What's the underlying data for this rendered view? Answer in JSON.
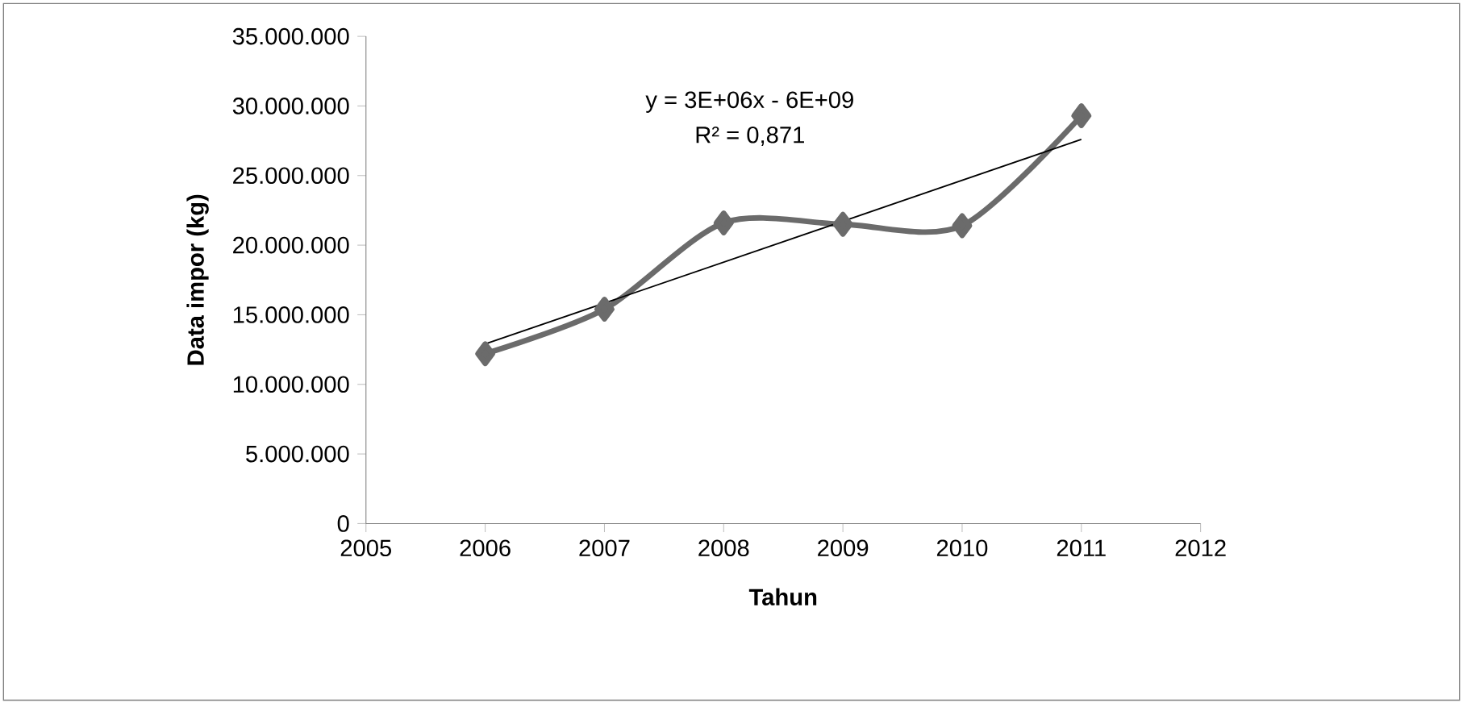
{
  "chart_data": {
    "type": "line",
    "xlabel": "Tahun",
    "ylabel": "Data impor (kg)",
    "x": [
      2006,
      2007,
      2008,
      2009,
      2010,
      2011
    ],
    "series": [
      {
        "color": "#6b6b6b",
        "values": [
          12200000,
          15400000,
          21600000,
          21500000,
          21400000,
          29300000
        ],
        "marker": "diamond"
      },
      {
        "type": "line",
        "color": "#000000",
        "x": [
          2006,
          2011
        ],
        "values": [
          12900000,
          27600000
        ],
        "marker": "none"
      }
    ],
    "xlim": [
      2005,
      2012
    ],
    "xticks": [
      2005,
      2006,
      2007,
      2008,
      2009,
      2010,
      2011,
      2012
    ],
    "ylim": [
      0,
      35000000
    ],
    "yticks": [
      0,
      {
        "value": 5000000,
        "label": "5.000.000"
      },
      {
        "value": 10000000,
        "label": "10.000.000"
      },
      {
        "value": 15000000,
        "label": "15.000.000"
      },
      {
        "value": 20000000,
        "label": "20.000.000"
      },
      {
        "value": 25000000,
        "label": "25.000.000"
      },
      {
        "value": 30000000,
        "label": "30.000.000"
      },
      {
        "value": 35000000,
        "label": "35.000.000"
      }
    ],
    "grid": false,
    "annotations": [
      "y = 3E+06x - 6E+09",
      "R² = 0,871"
    ]
  }
}
